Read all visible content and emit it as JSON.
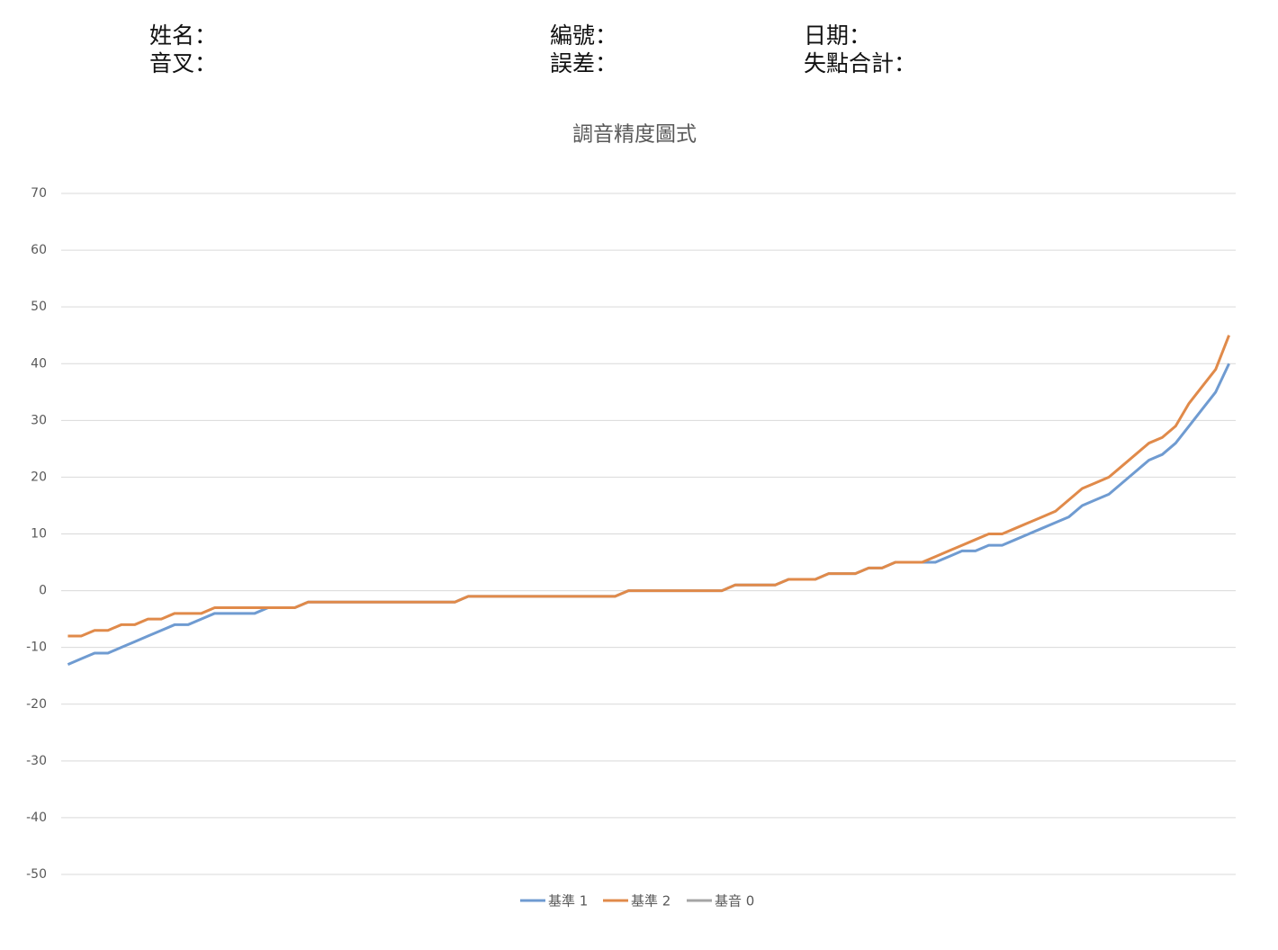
{
  "form_labels": [
    "姓名：",
    "音叉：",
    "編號：",
    "誤差：",
    "日期：",
    "失點合計："
  ],
  "chart_data": {
    "type": "line",
    "title": "調音精度圖式",
    "categories": [
      null,
      null,
      null,
      null,
      null,
      null,
      null,
      null,
      null,
      null,
      null,
      null,
      null,
      null,
      null,
      null,
      null,
      null,
      null,
      null,
      null,
      null,
      null,
      null,
      null,
      null,
      null,
      null,
      null,
      null,
      null,
      null,
      null,
      null,
      null,
      null,
      null,
      null,
      null,
      null,
      null,
      null,
      null,
      null,
      null,
      null,
      null,
      null,
      null,
      null,
      null,
      null,
      null,
      null,
      null,
      null,
      null,
      null,
      null,
      null,
      null,
      null,
      null,
      null,
      null,
      null,
      null,
      null,
      null,
      null,
      null,
      null,
      null,
      null,
      null,
      null,
      null,
      null,
      null,
      null,
      null,
      null,
      null,
      null,
      null,
      null,
      null,
      null
    ],
    "series": [
      {
        "name": "基準 1",
        "color": "#6f9bd1",
        "values": [
          -13,
          -12,
          -11,
          -11,
          -10,
          -9,
          -8,
          -7,
          -6,
          -6,
          -5,
          -4,
          -4,
          -4,
          -4,
          -3,
          -3,
          -3,
          -2,
          -2,
          -2,
          -2,
          -2,
          -2,
          -2,
          -2,
          -2,
          -2,
          -2,
          -2,
          -1,
          -1,
          -1,
          -1,
          -1,
          -1,
          -1,
          -1,
          -1,
          -1,
          -1,
          -1,
          0,
          0,
          0,
          0,
          0,
          0,
          0,
          0,
          1,
          1,
          1,
          1,
          2,
          2,
          2,
          3,
          3,
          3,
          4,
          4,
          5,
          5,
          5,
          5,
          6,
          7,
          7,
          8,
          8,
          9,
          10,
          11,
          12,
          13,
          15,
          16,
          17,
          19,
          21,
          23,
          24,
          26,
          29,
          32,
          35,
          40
        ]
      },
      {
        "name": "基準 2",
        "color": "#e08a4a",
        "values": [
          -8,
          -8,
          -7,
          -7,
          -6,
          -6,
          -5,
          -5,
          -4,
          -4,
          -4,
          -3,
          -3,
          -3,
          -3,
          -3,
          -3,
          -3,
          -2,
          -2,
          -2,
          -2,
          -2,
          -2,
          -2,
          -2,
          -2,
          -2,
          -2,
          -2,
          -1,
          -1,
          -1,
          -1,
          -1,
          -1,
          -1,
          -1,
          -1,
          -1,
          -1,
          -1,
          0,
          0,
          0,
          0,
          0,
          0,
          0,
          0,
          1,
          1,
          1,
          1,
          2,
          2,
          2,
          3,
          3,
          3,
          4,
          4,
          5,
          5,
          5,
          6,
          7,
          8,
          9,
          10,
          10,
          11,
          12,
          13,
          14,
          16,
          18,
          19,
          20,
          22,
          24,
          26,
          27,
          29,
          33,
          36,
          39,
          45
        ]
      },
      {
        "name": "基音 0",
        "color": "#a5a5a5",
        "values": [
          null,
          null,
          null,
          null,
          null,
          null,
          null,
          null,
          null,
          null,
          null,
          null,
          null,
          null,
          null,
          null,
          null,
          null,
          null,
          null,
          null,
          null,
          null,
          null,
          null,
          null,
          null,
          null,
          null,
          null,
          null,
          null,
          null,
          null,
          null,
          null,
          null,
          null,
          null,
          null,
          null,
          null,
          null,
          null,
          null,
          null,
          null,
          null,
          null,
          null,
          null,
          null,
          null,
          null,
          null,
          null,
          null,
          null,
          null,
          null,
          null,
          null,
          null,
          null,
          null,
          null,
          null,
          null,
          null,
          null,
          null,
          null,
          null,
          null,
          null,
          null,
          null,
          null,
          null,
          null,
          null,
          null,
          null,
          null,
          null,
          null,
          null,
          null
        ]
      }
    ],
    "ylim": [
      -50,
      70
    ],
    "yticks": [
      -50,
      -40,
      -30,
      -20,
      -10,
      0,
      10,
      20,
      30,
      40,
      50,
      60,
      70
    ],
    "grid": true,
    "legend": "bottom"
  }
}
